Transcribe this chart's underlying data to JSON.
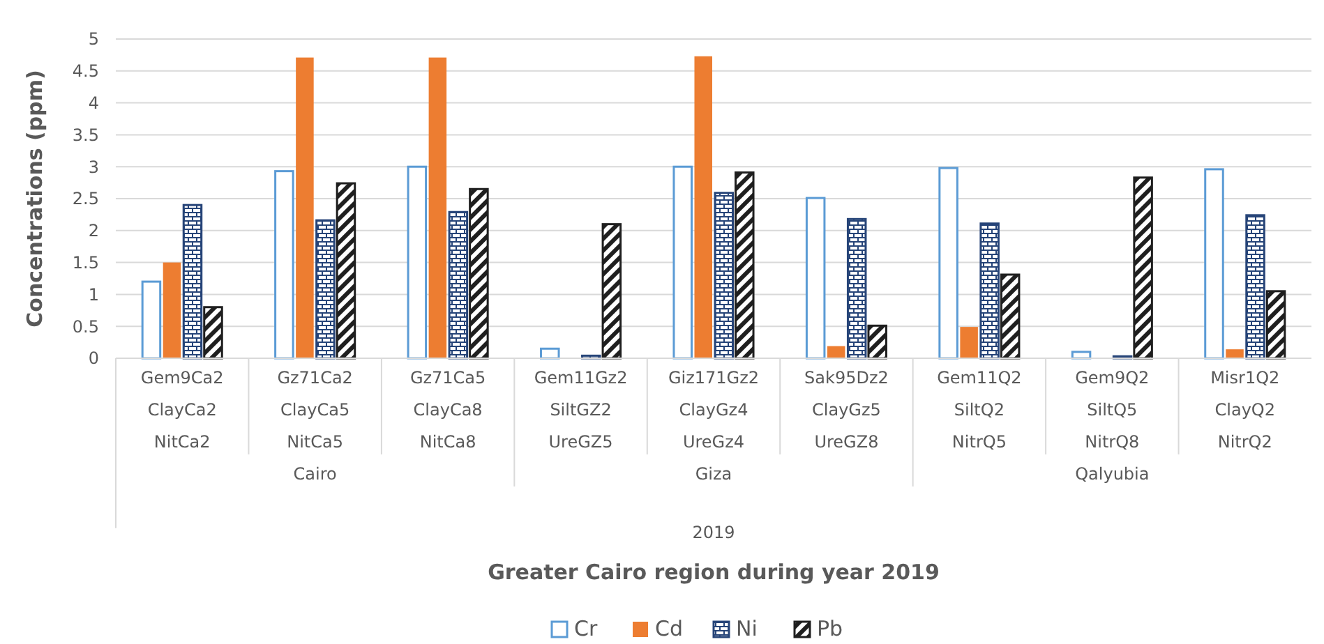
{
  "chart_data": {
    "type": "bar",
    "ylabel": "Concentrations (ppm)",
    "categories": [
      "Gem9Ca2\nClayCa2\nNitCa2",
      "Gz71Ca2\nClayCa5\nNitCa5",
      "Gz71Ca5\nClayCa8\nNitCa8",
      "Gem11Gz2\nSiltGZ2\nUreGZ5",
      "Giz171Gz2\nClayGz4\nUreGz4",
      "Sak95Dz2\nClayGz5\nUreGZ8",
      "Gem11Q2\nSiltQ2\nNitrQ5",
      "Gem9Q2\nSiltQ5\nNitrQ8",
      "Misr1Q2\nClayQ2\nNitrQ2"
    ],
    "series": [
      {
        "name": "Cr",
        "color": "#5b9bd5",
        "values": [
          1.2,
          2.93,
          3.0,
          0.15,
          3.0,
          2.51,
          2.98,
          0.1,
          2.96
        ]
      },
      {
        "name": "Cd",
        "color": "#ed7d31",
        "values": [
          1.5,
          4.71,
          4.71,
          0,
          4.73,
          0.19,
          0.49,
          0,
          0.14
        ]
      },
      {
        "name": "Ni",
        "color": "#264478",
        "values": [
          2.4,
          2.16,
          2.29,
          0.04,
          2.59,
          2.18,
          2.11,
          0.03,
          2.24
        ]
      },
      {
        "name": "Pb",
        "color": "#1f1f1f",
        "values": [
          0.8,
          2.74,
          2.65,
          2.1,
          2.91,
          0.51,
          1.31,
          2.83,
          1.05
        ]
      }
    ],
    "annotations": [
      "Cairo",
      "Giza",
      "Qalyubia",
      "2019",
      "Greater Cairo region during year 2019"
    ],
    "ylim": [
      0,
      5
    ],
    "yticks": [
      0,
      0.5,
      1,
      1.5,
      2,
      2.5,
      3,
      3.5,
      4,
      4.5,
      5
    ],
    "grid": "y",
    "legend": "bottom"
  }
}
